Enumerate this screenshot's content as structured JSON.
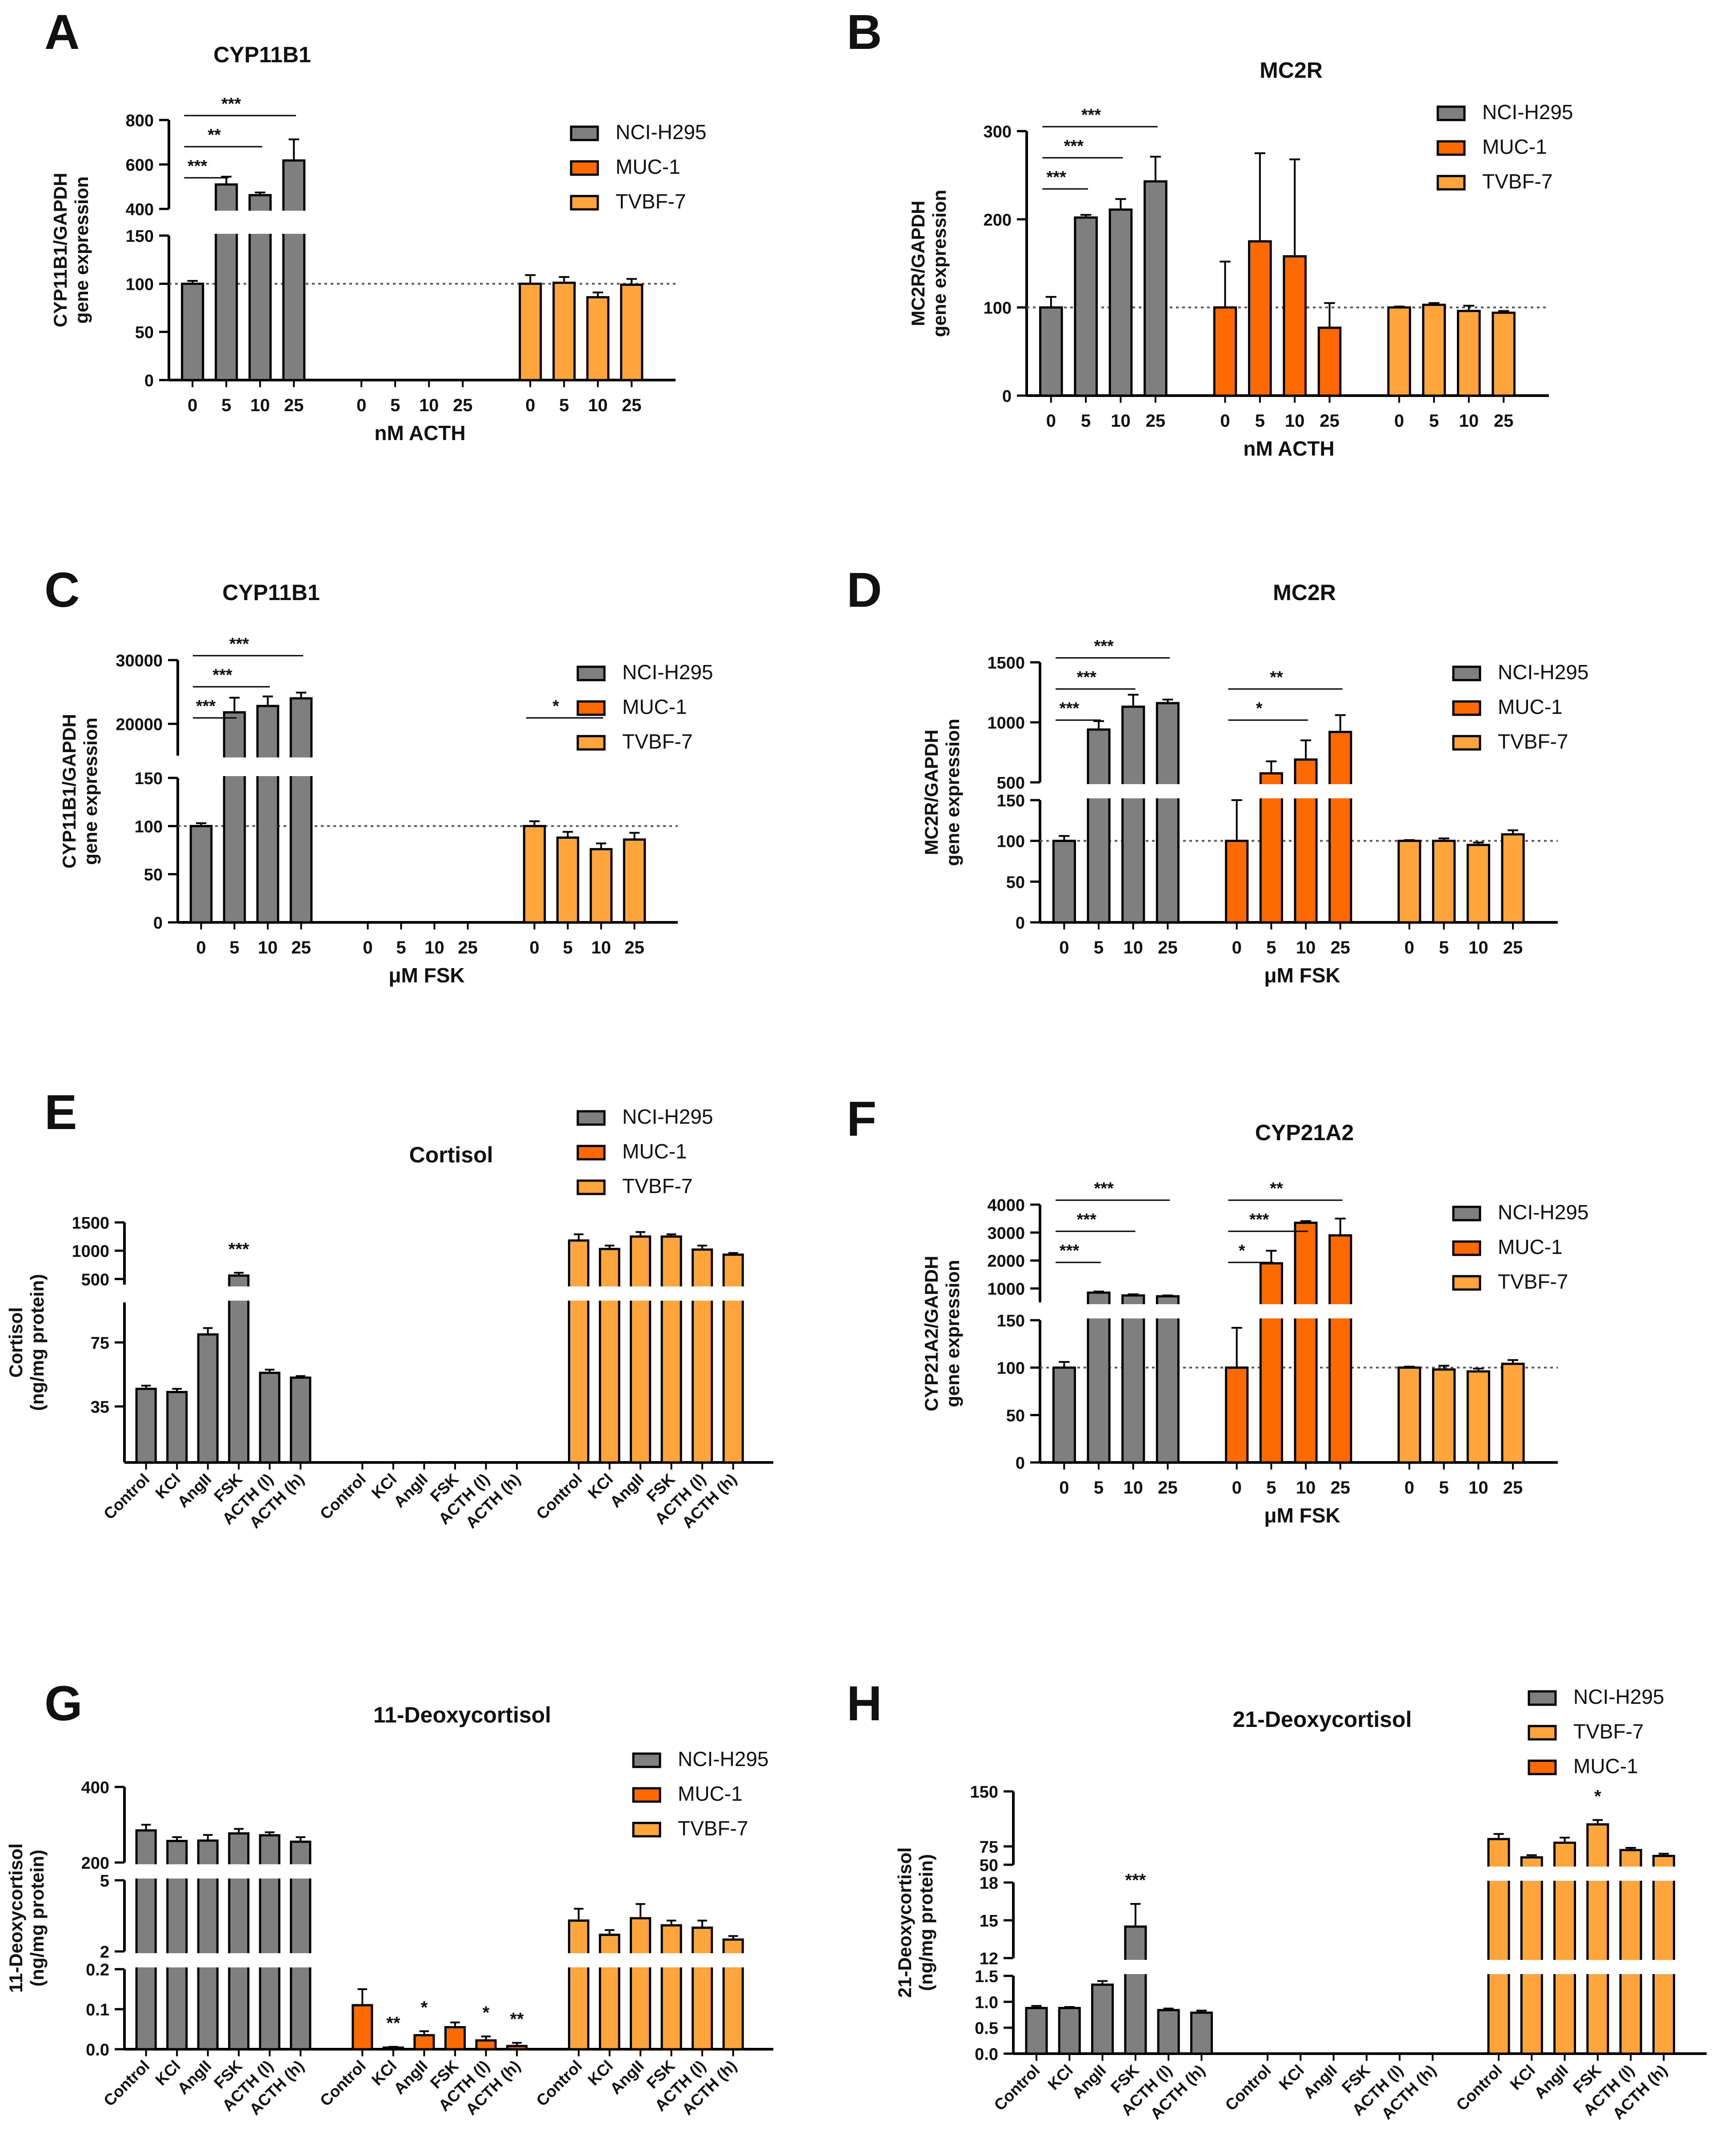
{
  "colors": {
    "NCI-H295": "#7f7f7f",
    "MUC-1": "#ff6a00",
    "TVBF-7": "#ffa53c",
    "axis": "#000000",
    "reference": "#555555"
  },
  "chart_data": [
    {
      "panel": "A",
      "type": "bar",
      "title": "CYP11B1",
      "ylabel": [
        "CYP11B1/GAPDH",
        "gene expression"
      ],
      "xlabel": "nM ACTH",
      "categories": [
        "0",
        "5",
        "10",
        "25"
      ],
      "legend": [
        "NCI-H295",
        "MUC-1",
        "TVBF-7"
      ],
      "segments": [
        {
          "range": [
            400,
            800
          ],
          "ticks": [
            400,
            600,
            800
          ]
        },
        {
          "range": [
            0,
            150
          ],
          "ticks": [
            0,
            50,
            100,
            150
          ]
        }
      ],
      "reference_line": 100,
      "series": [
        {
          "name": "NCI-H295",
          "values": [
            100,
            510,
            462,
            618
          ],
          "errors": [
            3,
            35,
            12,
            95
          ]
        },
        {
          "name": "MUC-1",
          "values": [
            null,
            null,
            null,
            null
          ],
          "errors": [
            0,
            0,
            0,
            0
          ]
        },
        {
          "name": "TVBF-7",
          "values": [
            100,
            101,
            86,
            99
          ],
          "errors": [
            9,
            6,
            5,
            6
          ]
        }
      ],
      "significance": [
        {
          "series": "NCI-H295",
          "from": 0,
          "to": 1,
          "label": "***"
        },
        {
          "series": "NCI-H295",
          "from": 0,
          "to": 2,
          "label": "**"
        },
        {
          "series": "NCI-H295",
          "from": 0,
          "to": 3,
          "label": "***"
        }
      ]
    },
    {
      "panel": "B",
      "type": "bar",
      "title": "MC2R",
      "ylabel": [
        "MC2R/GAPDH",
        "gene expression"
      ],
      "xlabel": "nM ACTH",
      "categories": [
        "0",
        "5",
        "10",
        "25"
      ],
      "legend": [
        "NCI-H295",
        "MUC-1",
        "TVBF-7"
      ],
      "segments": [
        {
          "range": [
            0,
            300
          ],
          "ticks": [
            0,
            100,
            200,
            300
          ]
        }
      ],
      "reference_line": 100,
      "series": [
        {
          "name": "NCI-H295",
          "values": [
            100,
            202,
            211,
            243
          ],
          "errors": [
            12,
            3,
            12,
            28
          ]
        },
        {
          "name": "MUC-1",
          "values": [
            100,
            175,
            158,
            77
          ],
          "errors": [
            52,
            100,
            110,
            28
          ]
        },
        {
          "name": "TVBF-7",
          "values": [
            100,
            103,
            96,
            94
          ],
          "errors": [
            1,
            2,
            6,
            2
          ]
        }
      ],
      "significance": [
        {
          "series": "NCI-H295",
          "from": 0,
          "to": 1,
          "label": "***"
        },
        {
          "series": "NCI-H295",
          "from": 0,
          "to": 2,
          "label": "***"
        },
        {
          "series": "NCI-H295",
          "from": 0,
          "to": 3,
          "label": "***"
        }
      ]
    },
    {
      "panel": "C",
      "type": "bar",
      "title": "CYP11B1",
      "ylabel": [
        "CYP11B1/GAPDH",
        "gene expression"
      ],
      "xlabel": "μM FSK",
      "categories": [
        "0",
        "5",
        "10",
        "25"
      ],
      "legend": [
        "NCI-H295",
        "MUC-1",
        "TVBF-7"
      ],
      "segments": [
        {
          "range": [
            15000,
            30000
          ],
          "ticks": [
            20000,
            30000
          ]
        },
        {
          "range": [
            0,
            150
          ],
          "ticks": [
            0,
            50,
            100,
            150
          ]
        }
      ],
      "reference_line": 100,
      "series": [
        {
          "name": "NCI-H295",
          "values": [
            100,
            21800,
            22800,
            24000
          ],
          "errors": [
            3,
            2300,
            1500,
            900
          ]
        },
        {
          "name": "MUC-1",
          "values": [
            null,
            null,
            null,
            null
          ],
          "errors": [
            0,
            0,
            0,
            0
          ]
        },
        {
          "name": "TVBF-7",
          "values": [
            100,
            88,
            76,
            86
          ],
          "errors": [
            5,
            6,
            6,
            7
          ]
        }
      ],
      "significance": [
        {
          "series": "NCI-H295",
          "from": 0,
          "to": 1,
          "label": "***"
        },
        {
          "series": "NCI-H295",
          "from": 0,
          "to": 2,
          "label": "***"
        },
        {
          "series": "NCI-H295",
          "from": 0,
          "to": 3,
          "label": "***"
        },
        {
          "series": "TVBF-7",
          "from": 0,
          "to": 2,
          "label": "*"
        }
      ]
    },
    {
      "panel": "D",
      "type": "bar",
      "title": "MC2R",
      "ylabel": [
        "MC2R/GAPDH",
        "gene expression"
      ],
      "xlabel": "μM FSK",
      "categories": [
        "0",
        "5",
        "10",
        "25"
      ],
      "legend": [
        "NCI-H295",
        "MUC-1",
        "TVBF-7"
      ],
      "segments": [
        {
          "range": [
            500,
            1500
          ],
          "ticks": [
            500,
            1000,
            1500
          ]
        },
        {
          "range": [
            0,
            150
          ],
          "ticks": [
            0,
            50,
            100,
            150
          ]
        }
      ],
      "reference_line": 100,
      "series": [
        {
          "name": "NCI-H295",
          "values": [
            100,
            940,
            1130,
            1160
          ],
          "errors": [
            6,
            70,
            100,
            30
          ]
        },
        {
          "name": "MUC-1",
          "values": [
            100,
            575,
            690,
            920
          ],
          "errors": [
            50,
            100,
            160,
            140
          ]
        },
        {
          "name": "TVBF-7",
          "values": [
            100,
            100,
            95,
            108
          ],
          "errors": [
            1,
            3,
            3,
            5
          ]
        }
      ],
      "significance": [
        {
          "series": "NCI-H295",
          "from": 0,
          "to": 1,
          "label": "***"
        },
        {
          "series": "NCI-H295",
          "from": 0,
          "to": 2,
          "label": "***"
        },
        {
          "series": "NCI-H295",
          "from": 0,
          "to": 3,
          "label": "***"
        },
        {
          "series": "MUC-1",
          "from": 0,
          "to": 2,
          "label": "*"
        },
        {
          "series": "MUC-1",
          "from": 0,
          "to": 3,
          "label": "**"
        }
      ]
    },
    {
      "panel": "E",
      "type": "bar",
      "title": "Cortisol",
      "ylabel": [
        "Cortisol",
        "(ng/mg protein)"
      ],
      "xlabel": "",
      "categories": [
        "Control",
        "KCl",
        "AngII",
        "FSK",
        "ACTH (l)",
        "ACTH (h)"
      ],
      "legend": [
        "NCI-H295",
        "MUC-1",
        "TVBF-7"
      ],
      "segments": [
        {
          "range": [
            400,
            1500
          ],
          "ticks": [
            500,
            1000,
            1500
          ]
        },
        {
          "range": [
            0,
            100
          ],
          "ticks": [
            35,
            75
          ]
        }
      ],
      "reference_line": null,
      "series": [
        {
          "name": "NCI-H295",
          "values": [
            46,
            44,
            80,
            560,
            56,
            53
          ],
          "errors": [
            2,
            2,
            4,
            50,
            2,
            1
          ]
        },
        {
          "name": "MUC-1",
          "values": [
            null,
            null,
            null,
            null,
            null,
            null
          ],
          "errors": [
            0,
            0,
            0,
            0,
            0,
            0
          ]
        },
        {
          "name": "TVBF-7",
          "values": [
            1180,
            1030,
            1250,
            1250,
            1020,
            930
          ],
          "errors": [
            110,
            60,
            80,
            40,
            70,
            30
          ]
        }
      ],
      "significance": [
        {
          "series": "NCI-H295",
          "at": 3,
          "label": "***"
        }
      ]
    },
    {
      "panel": "F",
      "type": "bar",
      "title": "CYP21A2",
      "ylabel": [
        "CYP21A2/GAPDH",
        "gene expression"
      ],
      "xlabel": "μM FSK",
      "categories": [
        "0",
        "5",
        "10",
        "25"
      ],
      "legend": [
        "NCI-H295",
        "MUC-1",
        "TVBF-7"
      ],
      "segments": [
        {
          "range": [
            500,
            4000
          ],
          "ticks": [
            1000,
            2000,
            3000,
            4000
          ]
        },
        {
          "range": [
            0,
            150
          ],
          "ticks": [
            0,
            50,
            100,
            150
          ]
        }
      ],
      "reference_line": 100,
      "series": [
        {
          "name": "NCI-H295",
          "values": [
            100,
            850,
            750,
            720
          ],
          "errors": [
            6,
            40,
            40,
            30
          ]
        },
        {
          "name": "MUC-1",
          "values": [
            100,
            1900,
            3350,
            2900
          ],
          "errors": [
            42,
            450,
            60,
            600
          ]
        },
        {
          "name": "TVBF-7",
          "values": [
            100,
            98,
            96,
            104
          ],
          "errors": [
            1,
            4,
            3,
            4
          ]
        }
      ],
      "significance": [
        {
          "series": "NCI-H295",
          "from": 0,
          "to": 1,
          "label": "***"
        },
        {
          "series": "NCI-H295",
          "from": 0,
          "to": 2,
          "label": "***"
        },
        {
          "series": "NCI-H295",
          "from": 0,
          "to": 3,
          "label": "***"
        },
        {
          "series": "MUC-1",
          "from": 0,
          "to": 1,
          "label": "*"
        },
        {
          "series": "MUC-1",
          "from": 0,
          "to": 2,
          "label": "***"
        },
        {
          "series": "MUC-1",
          "from": 0,
          "to": 3,
          "label": "**"
        }
      ]
    },
    {
      "panel": "G",
      "type": "bar",
      "title": "11-Deoxycortisol",
      "ylabel": [
        "11-Deoxycortisol",
        "(ng/mg protein)"
      ],
      "xlabel": "",
      "categories": [
        "Control",
        "KCl",
        "AngII",
        "FSK",
        "ACTH (l)",
        "ACTH (h)"
      ],
      "legend": [
        "NCI-H295",
        "MUC-1",
        "TVBF-7"
      ],
      "segments": [
        {
          "range": [
            200,
            400
          ],
          "ticks": [
            200,
            400
          ]
        },
        {
          "range": [
            2,
            5
          ],
          "ticks": [
            2,
            5
          ]
        },
        {
          "range": [
            0,
            0.2
          ],
          "ticks": [
            0.0,
            0.1,
            0.2
          ]
        }
      ],
      "reference_line": null,
      "series": [
        {
          "name": "NCI-H295",
          "values": [
            285,
            257,
            258,
            277,
            272,
            255
          ],
          "errors": [
            15,
            10,
            15,
            12,
            8,
            12
          ]
        },
        {
          "name": "MUC-1",
          "values": [
            0.11,
            0.004,
            0.035,
            0.055,
            0.022,
            0.008
          ],
          "errors": [
            0.04,
            0.002,
            0.01,
            0.012,
            0.01,
            0.008
          ]
        },
        {
          "name": "TVBF-7",
          "values": [
            3.3,
            2.7,
            3.4,
            3.1,
            3.0,
            2.5
          ],
          "errors": [
            0.5,
            0.2,
            0.6,
            0.2,
            0.3,
            0.15
          ]
        }
      ],
      "significance": [
        {
          "series": "MUC-1",
          "at": 1,
          "label": "**"
        },
        {
          "series": "MUC-1",
          "at": 2,
          "label": "*"
        },
        {
          "series": "MUC-1",
          "at": 4,
          "label": "*"
        },
        {
          "series": "MUC-1",
          "at": 5,
          "label": "**"
        }
      ]
    },
    {
      "panel": "H",
      "type": "bar",
      "title": "21-Deoxycortisol",
      "ylabel": [
        "21-Deoxycortisol",
        "(ng/mg protein)"
      ],
      "xlabel": "",
      "categories": [
        "Control",
        "KCl",
        "AngII",
        "FSK",
        "ACTH (l)",
        "ACTH (h)"
      ],
      "legend": [
        "NCI-H295",
        "TVBF-7",
        "MUC-1"
      ],
      "segments": [
        {
          "range": [
            50,
            150
          ],
          "ticks": [
            50,
            75,
            150
          ]
        },
        {
          "range": [
            12,
            18
          ],
          "ticks": [
            12,
            15,
            18
          ]
        },
        {
          "range": [
            0,
            1.5
          ],
          "ticks": [
            0.0,
            0.5,
            1.0,
            1.5
          ]
        }
      ],
      "reference_line": null,
      "series": [
        {
          "name": "NCI-H295",
          "values": [
            0.88,
            0.88,
            1.33,
            14.5,
            0.84,
            0.79
          ],
          "errors": [
            0.04,
            0.02,
            0.07,
            1.8,
            0.03,
            0.04
          ]
        },
        {
          "name": "MUC-1",
          "values": [
            null,
            null,
            null,
            null,
            null,
            null
          ],
          "errors": [
            0,
            0,
            0,
            0,
            0,
            0
          ]
        },
        {
          "name": "TVBF-7",
          "values": [
            85,
            60,
            80,
            105,
            70,
            62
          ],
          "errors": [
            7,
            3,
            7,
            6,
            3,
            3
          ]
        }
      ],
      "significance": [
        {
          "series": "NCI-H295",
          "at": 3,
          "label": "***"
        },
        {
          "series": "TVBF-7",
          "at": 3,
          "label": "*"
        }
      ]
    }
  ]
}
